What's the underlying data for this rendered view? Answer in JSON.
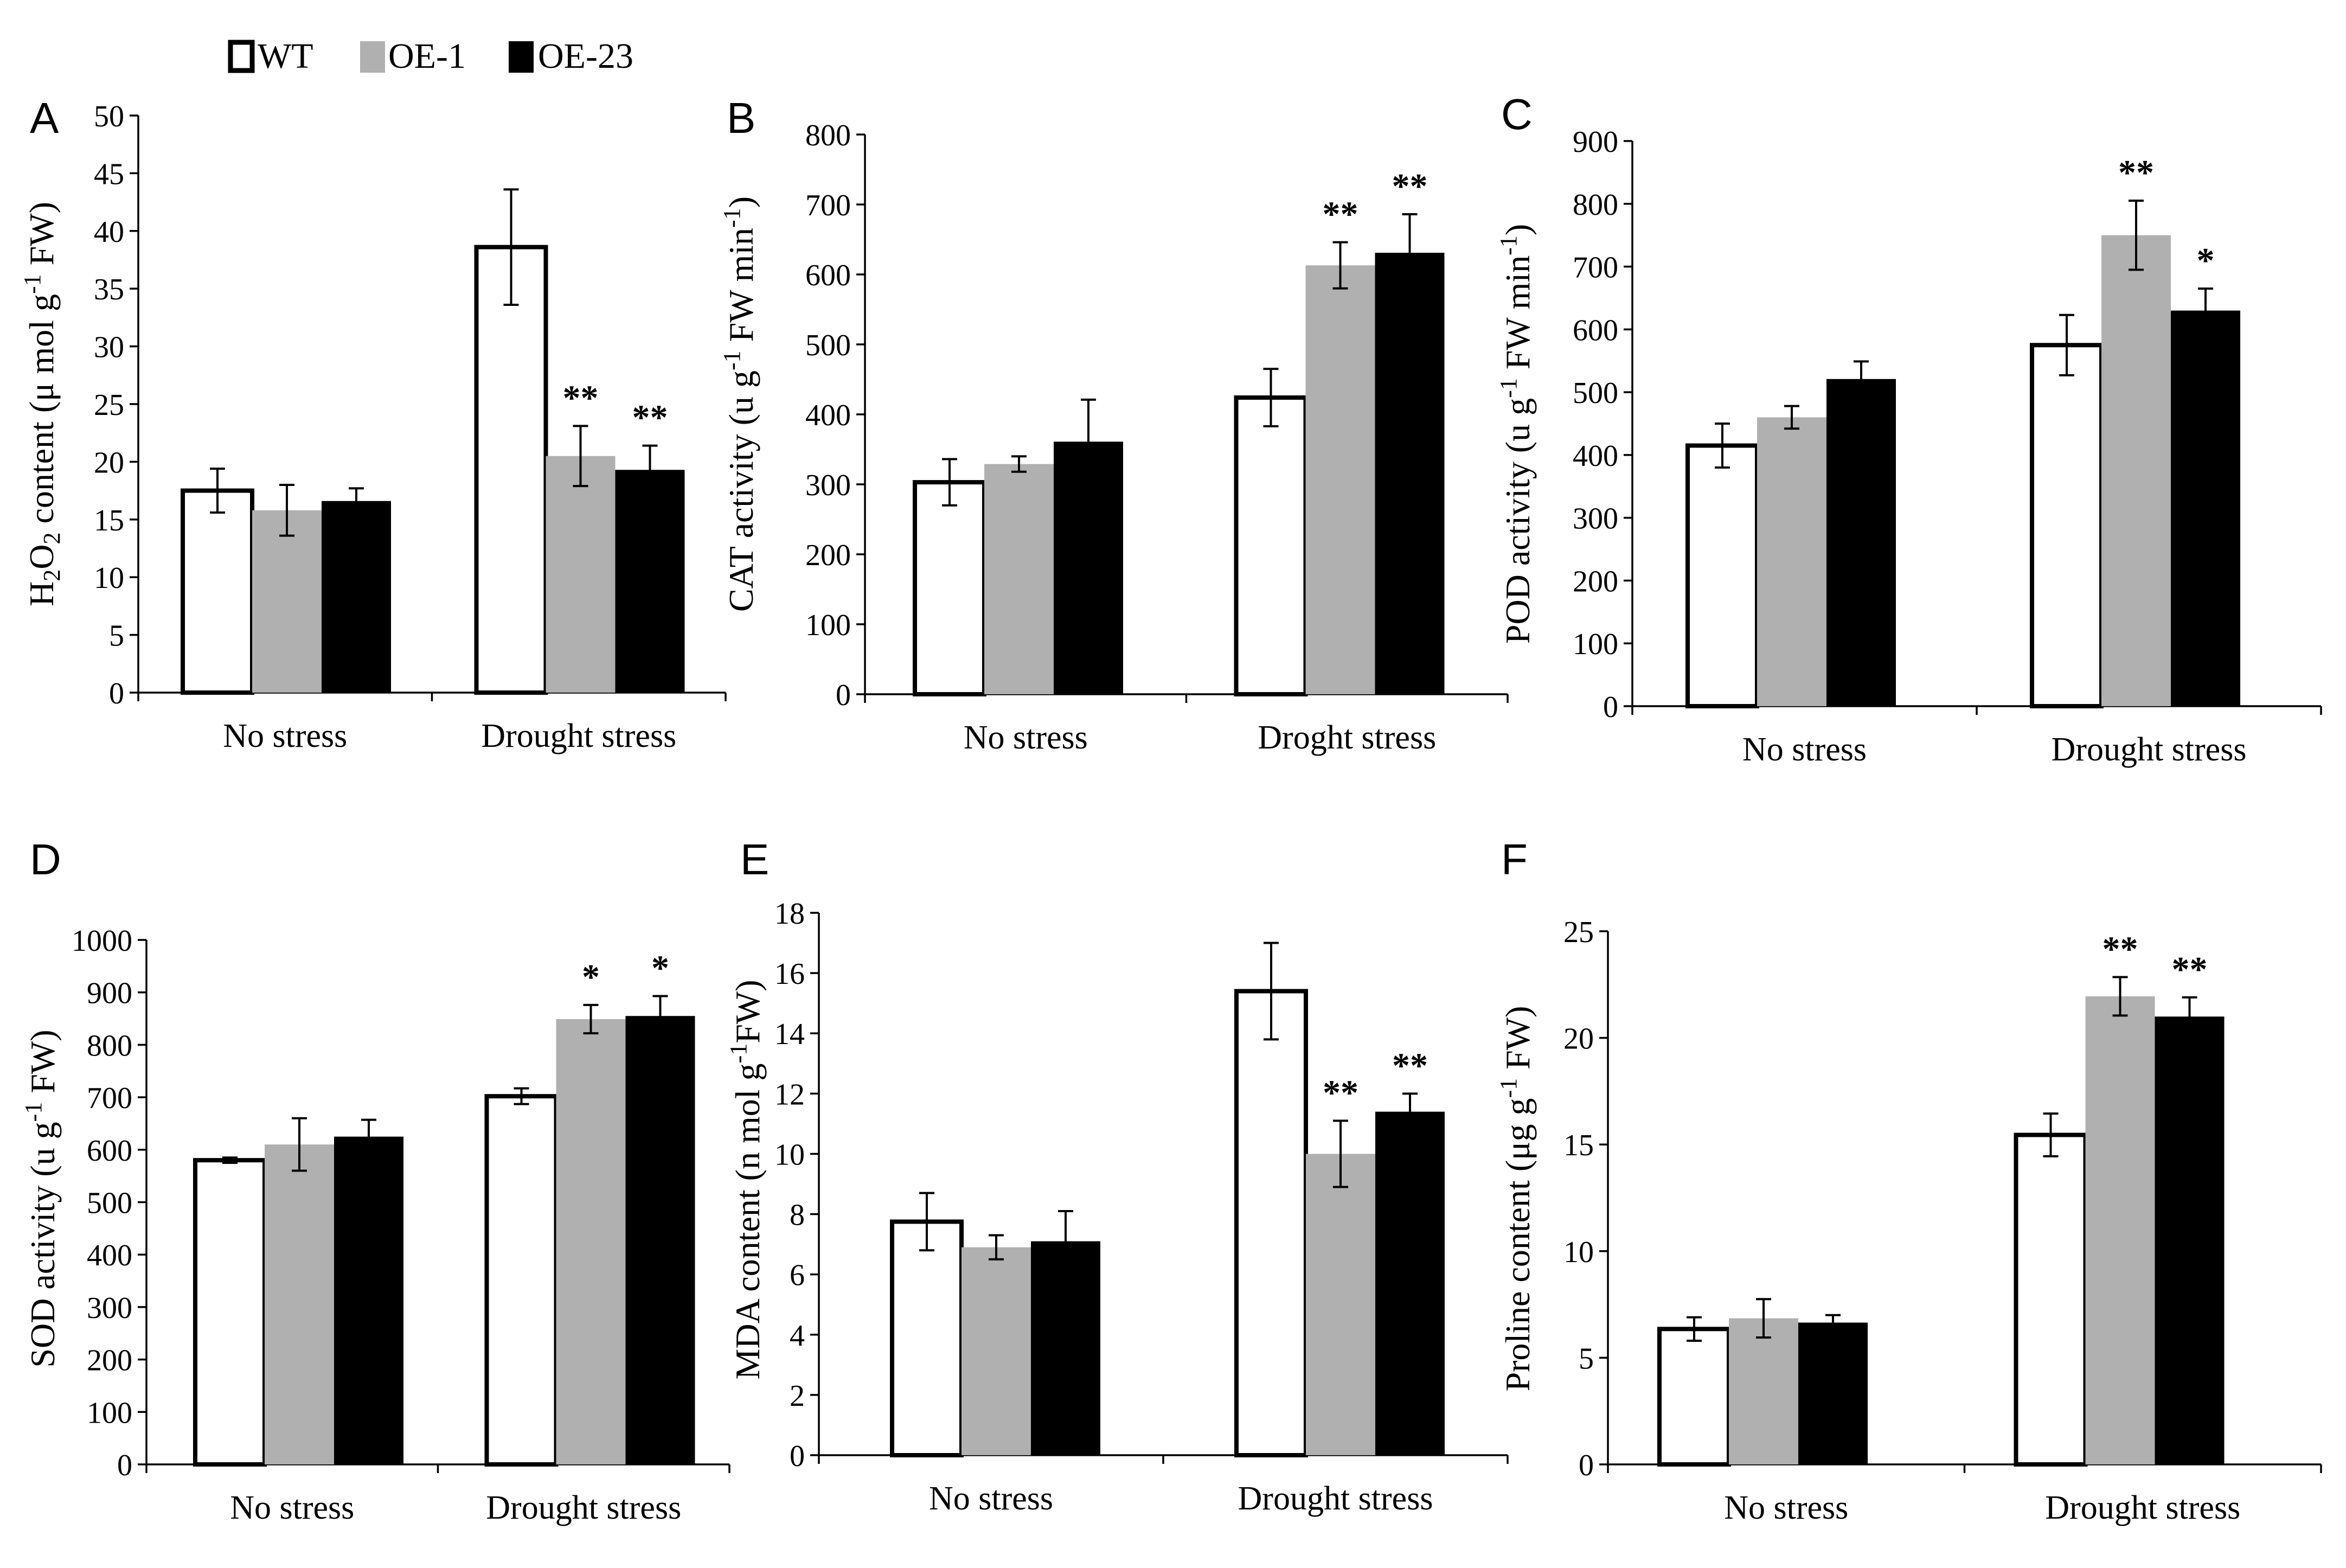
{
  "legend": {
    "items": [
      {
        "label": "WT",
        "color": "#ffffff"
      },
      {
        "label": "OE-1",
        "color": "#b0b0b0"
      },
      {
        "label": "OE-23",
        "color": "#000000"
      }
    ]
  },
  "chart_data": [
    {
      "panel": "A",
      "type": "bar",
      "categories": [
        "No stress",
        "Drought stress"
      ],
      "ylabel": "H2O2 content (μ mol g-1 FW)",
      "ylim": [
        0,
        50
      ],
      "yticks": [
        0,
        5,
        10,
        15,
        20,
        25,
        30,
        35,
        40,
        45,
        50
      ],
      "series": [
        {
          "name": "WT",
          "values": [
            17.5,
            38.6
          ],
          "errors": [
            1.9,
            5.0
          ],
          "sig": [
            "",
            ""
          ]
        },
        {
          "name": "OE-1",
          "values": [
            15.8,
            20.5
          ],
          "errors": [
            2.2,
            2.6
          ],
          "sig": [
            "",
            "**"
          ]
        },
        {
          "name": "OE-23",
          "values": [
            16.6,
            19.3
          ],
          "errors": [
            1.1,
            2.1
          ],
          "sig": [
            "",
            "**"
          ]
        }
      ]
    },
    {
      "panel": "B",
      "type": "bar",
      "categories": [
        "No stress",
        "Droght stress"
      ],
      "ylabel": "CAT activity (u g-1 FW min-1)",
      "ylim": [
        0,
        800
      ],
      "yticks": [
        0,
        100,
        200,
        300,
        400,
        500,
        600,
        700,
        800
      ],
      "series": [
        {
          "name": "WT",
          "values": [
            303,
            424
          ],
          "errors": [
            33,
            41
          ],
          "sig": [
            "",
            ""
          ]
        },
        {
          "name": "OE-1",
          "values": [
            329,
            613
          ],
          "errors": [
            11,
            33
          ],
          "sig": [
            "",
            "**"
          ]
        },
        {
          "name": "OE-23",
          "values": [
            361,
            631
          ],
          "errors": [
            60,
            55
          ],
          "sig": [
            "",
            "**"
          ]
        }
      ]
    },
    {
      "panel": "C",
      "type": "bar",
      "categories": [
        "No stress",
        "Drought stress"
      ],
      "ylabel": "POD activity (u g-1 FW min-1)",
      "ylim": [
        0,
        900
      ],
      "yticks": [
        0,
        100,
        200,
        300,
        400,
        500,
        600,
        700,
        800,
        900
      ],
      "series": [
        {
          "name": "WT",
          "values": [
            415,
            575
          ],
          "errors": [
            35,
            48
          ],
          "sig": [
            "",
            ""
          ]
        },
        {
          "name": "OE-1",
          "values": [
            460,
            750
          ],
          "errors": [
            18,
            55
          ],
          "sig": [
            "",
            "**"
          ]
        },
        {
          "name": "OE-23",
          "values": [
            521,
            630
          ],
          "errors": [
            28,
            35
          ],
          "sig": [
            "",
            "*"
          ]
        }
      ]
    },
    {
      "panel": "D",
      "type": "bar",
      "categories": [
        "No stress",
        "Drought stress"
      ],
      "ylabel": "SOD activity (u g-1 FW)",
      "ylim": [
        0,
        1000
      ],
      "yticks": [
        0,
        100,
        200,
        300,
        400,
        500,
        600,
        700,
        800,
        900,
        1000
      ],
      "series": [
        {
          "name": "WT",
          "values": [
            580,
            702
          ],
          "errors": [
            5,
            15
          ],
          "sig": [
            "",
            ""
          ]
        },
        {
          "name": "OE-1",
          "values": [
            610,
            849
          ],
          "errors": [
            50,
            27
          ],
          "sig": [
            "",
            "*"
          ]
        },
        {
          "name": "OE-23",
          "values": [
            625,
            855
          ],
          "errors": [
            32,
            38
          ],
          "sig": [
            "",
            "*"
          ]
        }
      ]
    },
    {
      "panel": "E",
      "type": "bar",
      "categories": [
        "No stress",
        "Drought stress"
      ],
      "ylabel": "MDA content (n mol g-1 FW)",
      "ylim": [
        0,
        18
      ],
      "yticks": [
        0,
        2,
        4,
        6,
        8,
        10,
        12,
        14,
        16,
        18
      ],
      "series": [
        {
          "name": "WT",
          "values": [
            7.75,
            15.4
          ],
          "errors": [
            0.95,
            1.6
          ],
          "sig": [
            "",
            ""
          ]
        },
        {
          "name": "OE-1",
          "values": [
            6.9,
            10.0
          ],
          "errors": [
            0.4,
            1.1
          ],
          "sig": [
            "",
            "**"
          ]
        },
        {
          "name": "OE-23",
          "values": [
            7.1,
            11.4
          ],
          "errors": [
            1.0,
            0.6
          ],
          "sig": [
            "",
            "**"
          ]
        }
      ]
    },
    {
      "panel": "F",
      "type": "bar",
      "categories": [
        "No stress",
        "Drought stress"
      ],
      "ylabel": "Proline content (μg g-1 FW)",
      "ylim": [
        0,
        25
      ],
      "yticks": [
        0,
        5,
        10,
        15,
        20,
        25
      ],
      "series": [
        {
          "name": "WT",
          "values": [
            6.35,
            15.45
          ],
          "errors": [
            0.55,
            1.0
          ],
          "sig": [
            "",
            ""
          ]
        },
        {
          "name": "OE-1",
          "values": [
            6.85,
            21.95
          ],
          "errors": [
            0.9,
            0.9
          ],
          "sig": [
            "",
            "**"
          ]
        },
        {
          "name": "OE-23",
          "values": [
            6.65,
            21.0
          ],
          "errors": [
            0.35,
            0.9
          ],
          "sig": [
            "",
            "**"
          ]
        }
      ]
    }
  ]
}
